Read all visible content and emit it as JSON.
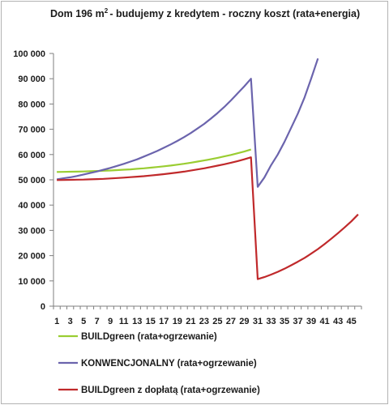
{
  "chart_data": {
    "type": "line",
    "title": {
      "prefix": "Dom 196 m",
      "sup": "2 ",
      "suffix": "- budujemy z kredytem  - roczny koszt (rata+energia)"
    },
    "xlabel": "",
    "ylabel": "",
    "x_range": [
      1,
      46
    ],
    "x_tick_labels": [
      "1",
      "3",
      "5",
      "7",
      "9",
      "11",
      "13",
      "15",
      "17",
      "19",
      "21",
      "23",
      "25",
      "27",
      "29",
      "31",
      "33",
      "35",
      "37",
      "39",
      "41",
      "43",
      "45"
    ],
    "ylim": [
      0,
      100000
    ],
    "y_tick_values": [
      0,
      10000,
      20000,
      30000,
      40000,
      50000,
      60000,
      70000,
      80000,
      90000,
      100000
    ],
    "y_tick_labels": [
      "0",
      "10 000",
      "20 000",
      "30 000",
      "40 000",
      "50 000",
      "60 000",
      "70 000",
      "80 000",
      "90 000",
      "100 000"
    ],
    "grid": false,
    "legend_position": "bottom",
    "series": [
      {
        "name": "BUILDgreen  (rata+ogrzewanie)",
        "color": "#9acd32",
        "x": [
          1,
          2,
          3,
          4,
          5,
          6,
          7,
          8,
          9,
          10,
          11,
          12,
          13,
          14,
          15,
          16,
          17,
          18,
          19,
          20,
          21,
          22,
          23,
          24,
          25,
          26,
          27,
          28,
          29,
          30
        ],
        "values": [
          53100,
          53150,
          53200,
          53250,
          53300,
          53400,
          53500,
          53600,
          53700,
          53850,
          54000,
          54150,
          54350,
          54550,
          54800,
          55050,
          55350,
          55650,
          56000,
          56350,
          56750,
          57200,
          57650,
          58150,
          58700,
          59250,
          59850,
          60500,
          61200,
          62000
        ]
      },
      {
        "name": "KONWENCJONALNY  (rata+ogrzewanie)",
        "color": "#6b64ad",
        "x": [
          1,
          2,
          3,
          4,
          5,
          6,
          7,
          8,
          9,
          10,
          11,
          12,
          13,
          14,
          15,
          16,
          17,
          18,
          19,
          20,
          21,
          22,
          23,
          24,
          25,
          26,
          27,
          28,
          29,
          30,
          31,
          32,
          33,
          34,
          35,
          36,
          37,
          38,
          39,
          40
        ],
        "values": [
          50200,
          50600,
          51000,
          51500,
          52100,
          52700,
          53300,
          54000,
          54700,
          55500,
          56300,
          57200,
          58100,
          59200,
          60300,
          61400,
          62700,
          64000,
          65400,
          66900,
          68500,
          70300,
          72100,
          74200,
          76400,
          78800,
          81400,
          84200,
          87000,
          90000,
          47200,
          50900,
          55800,
          60000,
          65000,
          70600,
          76200,
          82600,
          90100,
          98000
        ]
      },
      {
        "name": "BUILDgreen  z dopłatą (rata+ogrzewanie)",
        "color": "#c0292b",
        "x": [
          1,
          2,
          3,
          4,
          5,
          6,
          7,
          8,
          9,
          10,
          11,
          12,
          13,
          14,
          15,
          16,
          17,
          18,
          19,
          20,
          21,
          22,
          23,
          24,
          25,
          26,
          27,
          28,
          29,
          30,
          31,
          32,
          33,
          34,
          35,
          36,
          37,
          38,
          39,
          40,
          41,
          42,
          43,
          44,
          45,
          46
        ],
        "values": [
          49900,
          49950,
          50000,
          50050,
          50100,
          50200,
          50300,
          50400,
          50550,
          50700,
          50850,
          51050,
          51250,
          51450,
          51700,
          51950,
          52250,
          52550,
          52900,
          53250,
          53650,
          54100,
          54550,
          55050,
          55600,
          56150,
          56750,
          57400,
          58100,
          58900,
          10700,
          11500,
          12500,
          13600,
          14800,
          16200,
          17600,
          19100,
          20800,
          22600,
          24600,
          26700,
          28900,
          31200,
          33600,
          36300
        ]
      }
    ]
  }
}
